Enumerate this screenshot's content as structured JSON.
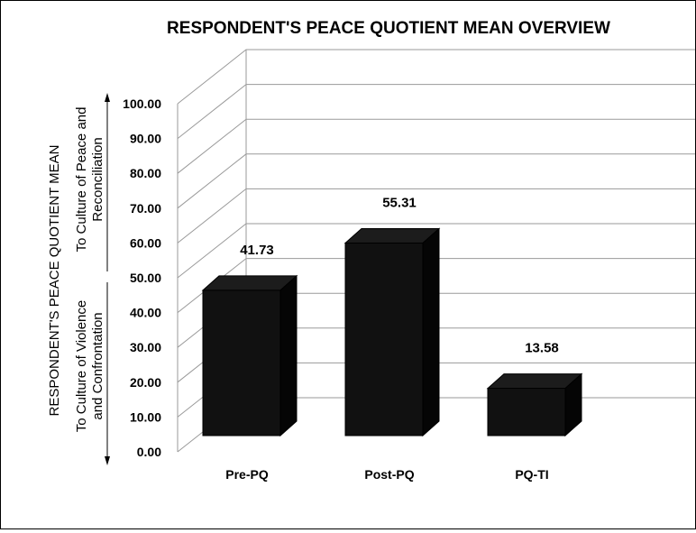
{
  "chart_data": {
    "type": "bar",
    "title": "RESPONDENT'S PEACE QUOTIENT MEAN OVERVIEW",
    "ylabel": "RESPONDENT'S PEACE QUOTIENT MEAN",
    "xlabel": "",
    "categories": [
      "Pre-PQ",
      "Post-PQ",
      "PQ-TI"
    ],
    "values": [
      41.73,
      55.31,
      13.58
    ],
    "data_labels": [
      "41.73",
      "55.31",
      "13.58"
    ],
    "ylim": [
      0,
      100
    ],
    "yticks": [
      "0.00",
      "10.00",
      "20.00",
      "30.00",
      "40.00",
      "50.00",
      "60.00",
      "70.00",
      "80.00",
      "90.00",
      "100.00"
    ],
    "annotations": {
      "up_line1": "To Culture of Peace and",
      "up_line2": "Reconciliation",
      "down_line1": "To Culture of Violence",
      "down_line2": "and Confrontation"
    },
    "grid": true,
    "style": "3d-column",
    "bar_color": "#111111"
  }
}
